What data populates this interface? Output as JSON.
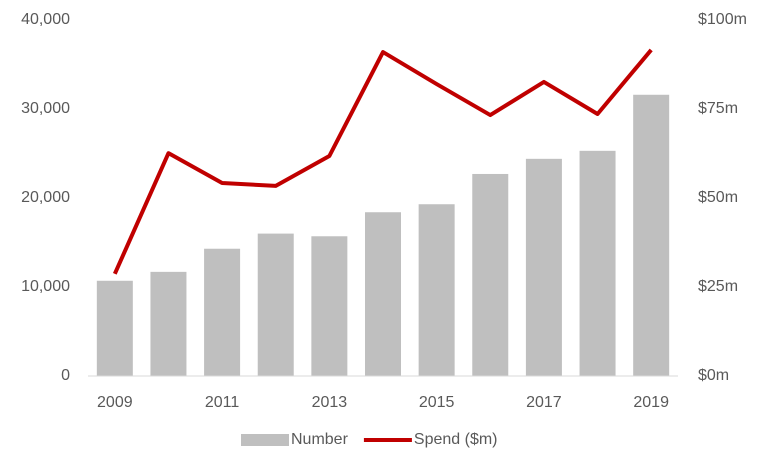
{
  "chart_data": {
    "type": "bar-line",
    "categories": [
      "2009",
      null,
      "2011",
      null,
      "2013",
      null,
      "2015",
      null,
      "2017",
      null,
      "2019"
    ],
    "series": [
      {
        "name": "Number",
        "type": "bar",
        "color": "#bfbfbf",
        "values": [
          10700,
          11700,
          14300,
          16000,
          15700,
          18400,
          19300,
          22700,
          24400,
          25300,
          31600
        ]
      },
      {
        "name": "Spend ($m)",
        "type": "line",
        "axis": "y2",
        "color": "#c00000",
        "values": [
          28.7,
          62.6,
          54.2,
          53.4,
          61.8,
          91.0,
          82.0,
          73.3,
          82.6,
          73.6,
          91.6
        ]
      }
    ],
    "ylim": [
      0,
      40000
    ],
    "yticks": [
      0,
      {
        "value": 10000,
        "label": "10,000"
      },
      {
        "value": 20000,
        "label": "20,000"
      },
      {
        "value": 30000,
        "label": "30,000"
      },
      {
        "value": 40000,
        "label": "40,000"
      }
    ],
    "y2lim": [
      0,
      100
    ],
    "y2ticks": [
      {
        "value": 0,
        "label": "$0m"
      },
      {
        "value": 25,
        "label": "$25m"
      },
      {
        "value": 50,
        "label": "$50m"
      },
      {
        "value": 75,
        "label": "$75m"
      },
      {
        "value": 100,
        "label": "$100m"
      }
    ],
    "legend": "bottom"
  }
}
